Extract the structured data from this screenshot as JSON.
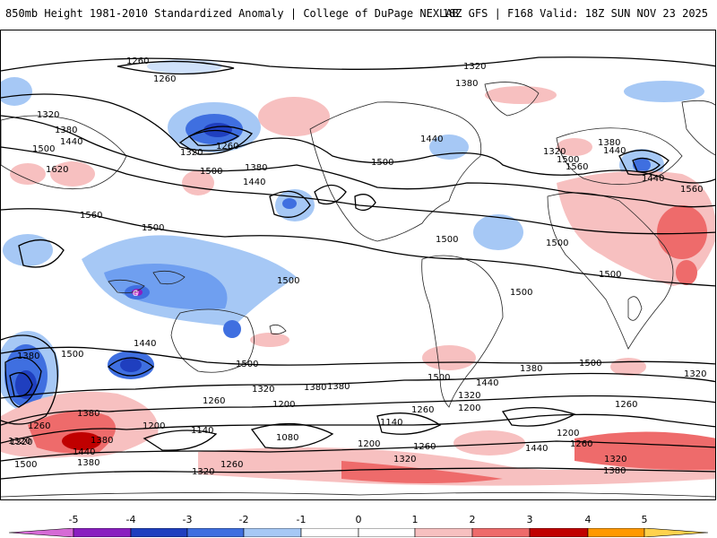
{
  "header": {
    "title": "850mb Height 1981-2010 Standardized Anomaly | College of DuPage NEXLAB",
    "run_info": "18Z GFS | F168 Valid: 18Z SUN NOV 23 2025"
  },
  "map": {
    "contour_labels": [
      "1260",
      "1320",
      "1380",
      "1440",
      "1500",
      "1560",
      "1620",
      "1200",
      "1140",
      "1080"
    ],
    "label_instances": [
      {
        "text": "1260"
      },
      {
        "text": "1260"
      },
      {
        "text": "1320"
      },
      {
        "text": "1380"
      },
      {
        "text": "1440"
      },
      {
        "text": "1500"
      },
      {
        "text": "1620"
      },
      {
        "text": "1560"
      },
      {
        "text": "1260"
      },
      {
        "text": "1320"
      },
      {
        "text": "1500"
      },
      {
        "text": "1380"
      },
      {
        "text": "1440"
      },
      {
        "text": "1500"
      },
      {
        "text": "1320"
      },
      {
        "text": "1380"
      },
      {
        "text": "1440"
      },
      {
        "text": "1500"
      },
      {
        "text": "1380"
      },
      {
        "text": "1440"
      },
      {
        "text": "1320"
      },
      {
        "text": "1500"
      },
      {
        "text": "1500"
      },
      {
        "text": "1500"
      },
      {
        "text": "1560"
      },
      {
        "text": "1440"
      },
      {
        "text": "1560"
      },
      {
        "text": "1500"
      },
      {
        "text": "1500"
      },
      {
        "text": "1500"
      },
      {
        "text": "1500"
      },
      {
        "text": "1380"
      },
      {
        "text": "1440"
      },
      {
        "text": "1500"
      },
      {
        "text": "1380"
      },
      {
        "text": "1320"
      },
      {
        "text": "1260"
      },
      {
        "text": "1200"
      },
      {
        "text": "1140"
      },
      {
        "text": "1080"
      },
      {
        "text": "1200"
      },
      {
        "text": "1260"
      },
      {
        "text": "1140"
      },
      {
        "text": "1200"
      },
      {
        "text": "1260"
      },
      {
        "text": "1320"
      },
      {
        "text": "1380"
      },
      {
        "text": "1500"
      },
      {
        "text": "1440"
      },
      {
        "text": "1380"
      },
      {
        "text": "1320"
      },
      {
        "text": "1260"
      },
      {
        "text": "1200"
      },
      {
        "text": "1260"
      },
      {
        "text": "1380"
      },
      {
        "text": "1320"
      },
      {
        "text": "1500"
      },
      {
        "text": "1380"
      },
      {
        "text": "1440"
      },
      {
        "text": "1500"
      },
      {
        "text": "1320"
      },
      {
        "text": "1260"
      },
      {
        "text": "1380"
      },
      {
        "text": "1440"
      },
      {
        "text": "1320"
      },
      {
        "text": "1260"
      },
      {
        "text": "1200"
      },
      {
        "text": "1320"
      },
      {
        "text": "1380"
      },
      {
        "text": "1320"
      }
    ],
    "low_marker": "G"
  },
  "legend": {
    "ticks": [
      "-5",
      "-4",
      "-3",
      "-2",
      "-1",
      "0",
      "1",
      "2",
      "3",
      "4",
      "5"
    ],
    "colors": [
      "#d66bd6",
      "#8a1fc0",
      "#1f3fbf",
      "#3f6fe0",
      "#a6c8f5",
      "#ffffff",
      "#ffffff",
      "#f7c0c0",
      "#ee6b6b",
      "#c00000",
      "#ff9900",
      "#ffd24d"
    ]
  }
}
